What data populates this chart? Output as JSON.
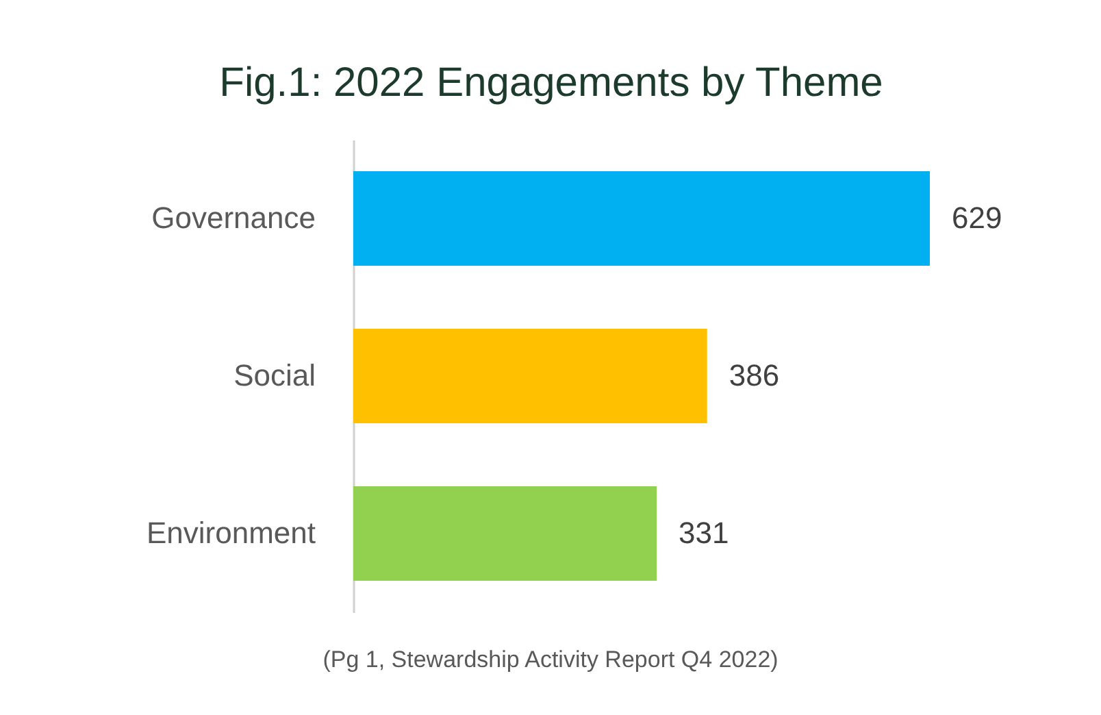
{
  "chart_data": {
    "type": "bar",
    "orientation": "horizontal",
    "title": "Fig.1: 2022 Engagements by Theme",
    "categories": [
      "Governance",
      "Social",
      "Environment"
    ],
    "values": [
      629,
      386,
      331
    ],
    "colors": [
      "#00b0f0",
      "#ffc000",
      "#92d050"
    ],
    "data_labels": true,
    "annotations": [
      "(Pg 1, Stewardship Activity Report Q4 2022)"
    ]
  }
}
